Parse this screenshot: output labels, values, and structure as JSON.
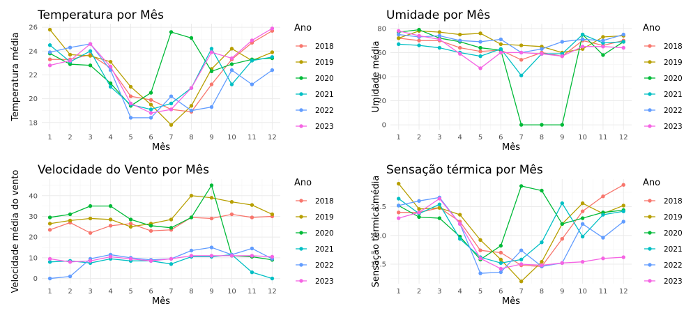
{
  "palette": [
    "#F8766D",
    "#B79F00",
    "#00BA38",
    "#00BFC4",
    "#619CFF",
    "#F564E3"
  ],
  "chart_data": [
    {
      "type": "line",
      "title": "Temperatura por Mês",
      "xlabel": "Mês",
      "ylabel": "Temperatura média",
      "x": [
        1,
        2,
        3,
        4,
        5,
        6,
        7,
        8,
        9,
        10,
        11,
        12
      ],
      "xlim": [
        0.6,
        12.4
      ],
      "ylim": [
        17.4,
        26.3
      ],
      "yticks": [
        18,
        20,
        22,
        24,
        26
      ],
      "ytick_labels": [
        "18",
        "20",
        "22",
        "24",
        "26"
      ],
      "legend_title": "Ano",
      "series": [
        {
          "name": "2018",
          "values": [
            23.3,
            23.3,
            23.7,
            22.6,
            20.2,
            19.9,
            19.1,
            18.9,
            21.2,
            23.3,
            24.7,
            25.7
          ]
        },
        {
          "name": "2019",
          "values": [
            25.8,
            23.7,
            23.6,
            23.1,
            21.0,
            19.5,
            17.8,
            19.4,
            22.5,
            24.2,
            23.2,
            23.9
          ]
        },
        {
          "name": "2020",
          "values": [
            23.8,
            22.9,
            22.8,
            21.3,
            19.4,
            20.5,
            25.6,
            25.1,
            22.3,
            22.9,
            23.3,
            23.4
          ]
        },
        {
          "name": "2021",
          "values": [
            24.5,
            23.1,
            24.0,
            21.0,
            19.5,
            19.1,
            19.6,
            20.9,
            24.2,
            21.2,
            23.2,
            23.5
          ]
        },
        {
          "name": "2022",
          "values": [
            23.9,
            24.3,
            24.6,
            22.4,
            18.4,
            18.4,
            20.2,
            19.0,
            19.3,
            22.4,
            21.2,
            22.4
          ]
        },
        {
          "name": "2023",
          "values": [
            22.8,
            23.2,
            24.6,
            22.7,
            19.6,
            18.8,
            19.1,
            20.9,
            23.9,
            23.4,
            24.9,
            25.9
          ]
        }
      ]
    },
    {
      "type": "line",
      "title": "Umidade por Mês",
      "xlabel": "Mês",
      "ylabel": "Umidade média",
      "x": [
        1,
        2,
        3,
        4,
        5,
        6,
        7,
        8,
        9,
        10,
        11,
        12
      ],
      "xlim": [
        0.6,
        12.4
      ],
      "ylim": [
        -4,
        84
      ],
      "yticks": [
        0,
        20,
        40,
        60,
        80
      ],
      "ytick_labels": [
        "0",
        "20",
        "40",
        "60",
        "80"
      ],
      "legend_title": "Ano",
      "series": [
        {
          "name": "2018",
          "values": [
            72,
            70,
            70,
            64,
            61,
            62,
            54,
            60,
            57,
            70,
            66,
            70
          ]
        },
        {
          "name": "2019",
          "values": [
            72,
            78,
            77,
            75,
            76,
            67,
            66,
            65,
            60,
            63,
            73,
            74
          ]
        },
        {
          "name": "2020",
          "values": [
            77,
            79,
            72,
            69,
            64,
            62,
            0,
            0,
            0,
            75,
            58,
            69
          ]
        },
        {
          "name": "2021",
          "values": [
            67,
            66,
            64,
            60,
            57,
            63,
            41,
            59,
            59,
            75,
            68,
            69
          ]
        },
        {
          "name": "2022",
          "values": [
            75,
            73,
            74,
            70,
            69,
            71,
            60,
            63,
            69,
            71,
            70,
            75
          ]
        },
        {
          "name": "2023",
          "values": [
            78,
            74,
            71,
            59,
            47,
            60,
            60,
            59,
            57,
            65,
            65,
            64
          ]
        }
      ]
    },
    {
      "type": "line",
      "title": "Velocidade do Vento por Mês",
      "xlabel": "Mês",
      "ylabel": "Velocidade média do vento",
      "x": [
        1,
        2,
        3,
        4,
        5,
        6,
        7,
        8,
        9,
        10,
        11,
        12
      ],
      "xlim": [
        0.6,
        12.4
      ],
      "ylim": [
        -2.5,
        48
      ],
      "yticks": [
        0,
        10,
        20,
        30,
        40
      ],
      "ytick_labels": [
        "0",
        "10",
        "20",
        "30",
        "40"
      ],
      "legend_title": "Ano",
      "series": [
        {
          "name": "2018",
          "values": [
            23.5,
            27.0,
            22.0,
            25.5,
            26.5,
            23.0,
            23.5,
            29.5,
            29.0,
            31.0,
            29.5,
            30.0
          ]
        },
        {
          "name": "2019",
          "values": [
            26.5,
            28.0,
            29.0,
            28.5,
            25.0,
            26.5,
            28.5,
            40.0,
            39.0,
            37.0,
            35.5,
            31.0
          ]
        },
        {
          "name": "2020",
          "values": [
            29.5,
            31.0,
            35.0,
            35.0,
            28.5,
            25.5,
            24.5,
            29.5,
            45.0,
            11.0,
            10.5,
            9.0
          ]
        },
        {
          "name": "2021",
          "values": [
            8.0,
            8.5,
            7.5,
            9.5,
            8.5,
            8.5,
            7.0,
            10.5,
            10.5,
            11.5,
            3.0,
            0.0
          ]
        },
        {
          "name": "2022",
          "values": [
            0.0,
            1.0,
            9.5,
            11.5,
            10.0,
            9.0,
            9.5,
            13.5,
            15.0,
            11.5,
            14.5,
            9.5
          ]
        },
        {
          "name": "2023",
          "values": [
            9.5,
            8.0,
            8.5,
            10.5,
            9.5,
            8.5,
            9.5,
            11.0,
            11.0,
            11.0,
            11.0,
            10.5
          ]
        }
      ]
    },
    {
      "type": "line",
      "title": "Sensação térmica por Mês",
      "xlabel": "Mês",
      "ylabel": "Sensação térmica média",
      "x": [
        1,
        2,
        3,
        4,
        5,
        6,
        7,
        8,
        9,
        10,
        11,
        12
      ],
      "xlim": [
        0.6,
        12.4
      ],
      "ylim": [
        15.8,
        24.9
      ],
      "yticks": [
        17.5,
        20.0,
        22.5
      ],
      "ytick_labels": [
        "17.5",
        "20.0",
        "22.5"
      ],
      "legend_title": "Ano",
      "series": [
        {
          "name": "2018",
          "values": [
            22.0,
            22.0,
            22.4,
            21.2,
            18.7,
            18.5,
            17.4,
            17.3,
            19.7,
            22.1,
            23.4,
            24.4
          ]
        },
        {
          "name": "2019",
          "values": [
            24.5,
            22.3,
            22.4,
            21.8,
            19.6,
            17.9,
            16.0,
            17.7,
            21.0,
            22.8,
            21.9,
            22.6
          ]
        },
        {
          "name": "2020",
          "values": [
            22.6,
            21.6,
            21.5,
            19.9,
            17.9,
            19.1,
            24.3,
            23.9,
            21.0,
            21.5,
            22.0,
            22.2
          ]
        },
        {
          "name": "2021",
          "values": [
            23.2,
            21.9,
            22.7,
            19.7,
            18.1,
            17.6,
            17.9,
            19.4,
            22.8,
            19.9,
            21.8,
            22.1
          ]
        },
        {
          "name": "2022",
          "values": [
            22.6,
            23.0,
            23.3,
            21.0,
            16.7,
            16.8,
            18.7,
            17.3,
            17.6,
            21.0,
            19.8,
            21.2
          ]
        },
        {
          "name": "2023",
          "values": [
            21.5,
            22.0,
            23.2,
            21.0,
            18.0,
            17.1,
            17.5,
            17.4,
            17.6,
            17.7,
            18.0,
            18.1
          ]
        }
      ]
    }
  ]
}
